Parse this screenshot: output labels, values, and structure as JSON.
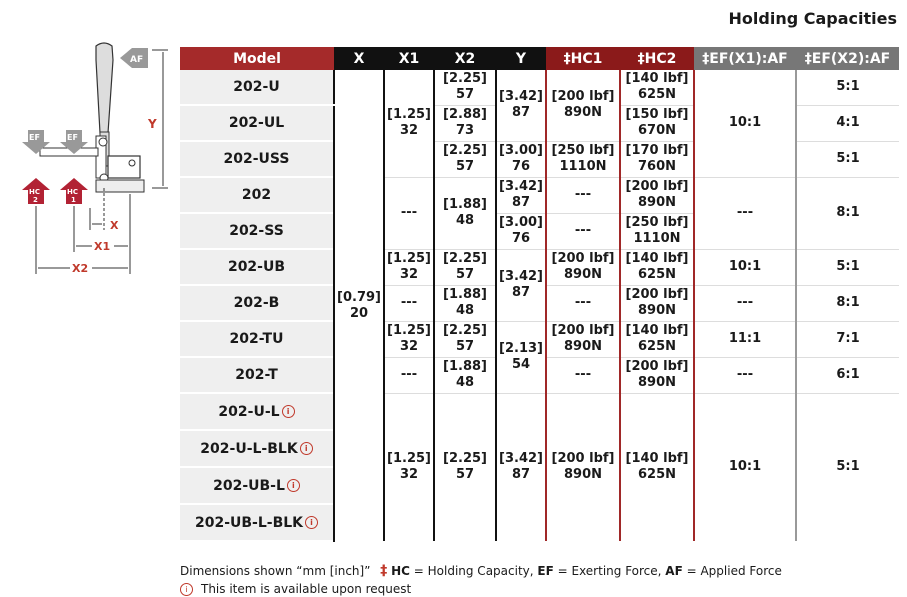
{
  "title": "Holding Capacities",
  "diagram": {
    "labels": {
      "af": "AF",
      "ef": "EF",
      "hc": "HC",
      "hc1": "1",
      "hc2": "2",
      "x": "X",
      "x1": "X1",
      "x2": "X2",
      "y": "Y"
    }
  },
  "table": {
    "headers": [
      "Model",
      "X",
      "X1",
      "X2",
      "Y",
      "‡HC1",
      "‡HC2",
      "‡EF(X1):AF",
      "‡EF(X2):AF"
    ],
    "rows": [
      {
        "model": "202-U",
        "x2": [
          "[2.25]",
          "57"
        ],
        "hc2": [
          "[140 lbf]",
          "625N"
        ],
        "ef2": "5:1"
      },
      {
        "model": "202-UL",
        "x2": [
          "[2.88]",
          "73"
        ],
        "hc2": [
          "[150 lbf]",
          "670N"
        ],
        "ef2": "4:1"
      },
      {
        "model": "202-USS",
        "x2": [
          "[2.25]",
          "57"
        ],
        "y": [
          "[3.00]",
          "76"
        ],
        "hc1": [
          "[250 lbf]",
          "1110N"
        ],
        "hc2": [
          "[170 lbf]",
          "760N"
        ],
        "ef2": "5:1"
      },
      {
        "model": "202",
        "y": [
          "[3.42]",
          "87"
        ],
        "hc1": "---",
        "hc2": [
          "[200 lbf]",
          "890N"
        ]
      },
      {
        "model": "202-SS",
        "y": [
          "[3.00]",
          "76"
        ],
        "hc1": "---",
        "hc2": [
          "[250 lbf]",
          "1110N"
        ]
      },
      {
        "model": "202-UB",
        "x1": [
          "[1.25]",
          "32"
        ],
        "x2": [
          "[2.25]",
          "57"
        ],
        "hc1": [
          "[200 lbf]",
          "890N"
        ],
        "hc2": [
          "[140 lbf]",
          "625N"
        ],
        "ef1": "10:1",
        "ef2": "5:1"
      },
      {
        "model": "202-B",
        "x1": "---",
        "x2": [
          "[1.88]",
          "48"
        ],
        "hc1": "---",
        "hc2": [
          "[200 lbf]",
          "890N"
        ],
        "ef1": "---",
        "ef2": "8:1"
      },
      {
        "model": "202-TU",
        "x1": [
          "[1.25]",
          "32"
        ],
        "x2": [
          "[2.25]",
          "57"
        ],
        "hc1": [
          "[200 lbf]",
          "890N"
        ],
        "hc2": [
          "[140 lbf]",
          "625N"
        ],
        "ef1": "11:1",
        "ef2": "7:1"
      },
      {
        "model": "202-T",
        "x1": "---",
        "x2": [
          "[1.88]",
          "48"
        ],
        "hc1": "---",
        "hc2": [
          "[200 lbf]",
          "890N"
        ],
        "ef1": "---",
        "ef2": "6:1"
      },
      {
        "model": "202-U-L"
      },
      {
        "model": "202-U-L-BLK"
      },
      {
        "model": "202-UB-L"
      },
      {
        "model": "202-UB-L-BLK"
      }
    ],
    "spans": {
      "x_all": [
        "[0.79]",
        "20"
      ],
      "x1_top": [
        "[1.25]",
        "32"
      ],
      "y_top": [
        "[3.42]",
        "87"
      ],
      "hc1_top": [
        "[200 lbf]",
        "890N"
      ],
      "ef1_top": "10:1",
      "x1_mid": "---",
      "x2_mid": [
        "[1.88]",
        "48"
      ],
      "ef1_mid": "---",
      "ef2_mid": "8:1",
      "y_ub": [
        "[3.42]",
        "87"
      ],
      "y_tu": [
        "[2.13]",
        "54"
      ],
      "x1_l": [
        "[1.25]",
        "32"
      ],
      "x2_l": [
        "[2.25]",
        "57"
      ],
      "y_l": [
        "[3.42]",
        "87"
      ],
      "hc1_l": [
        "[200 lbf]",
        "890N"
      ],
      "hc2_l": [
        "[140 lbf]",
        "625N"
      ],
      "ef1_l": "10:1",
      "ef2_l": "5:1"
    },
    "info_glyph": "i"
  },
  "footer": {
    "line1_a": "Dimensions shown “mm [inch]”",
    "dagger": "‡",
    "hc_abbr": "HC",
    "hc_text": " = Holding Capacity, ",
    "ef_abbr": "EF",
    "ef_text": " = Exerting Force, ",
    "af_abbr": "AF",
    "af_text": " = Applied Force",
    "line2": "This item is available upon request"
  },
  "colors": {
    "model_header": "#a52a2a",
    "black_header": "#111111",
    "red_header": "#8b1a1a",
    "gray_header": "#777777",
    "accent": "#c0392b"
  }
}
